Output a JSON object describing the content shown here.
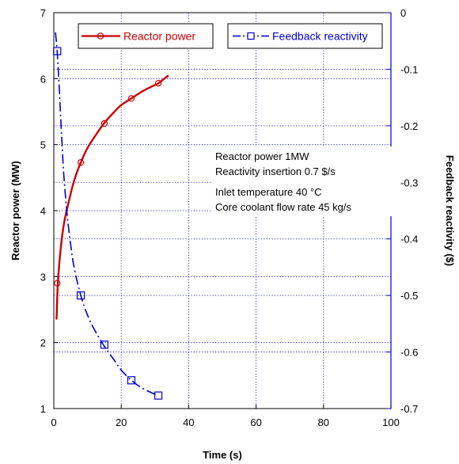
{
  "chart_data": {
    "type": "line",
    "x_axis": {
      "label": "Time (s)",
      "range": [
        0,
        100
      ],
      "ticks": [
        0,
        20,
        40,
        60,
        80,
        100
      ],
      "tick_labels": [
        "0",
        "20",
        "40",
        "60",
        "80",
        "100"
      ]
    },
    "y_left_axis": {
      "label": "Reactor power (MW)",
      "range": [
        1,
        7
      ],
      "ticks": [
        1,
        2,
        3,
        4,
        5,
        6,
        7
      ],
      "tick_labels": [
        "1",
        "2",
        "3",
        "4",
        "5",
        "6",
        "7"
      ]
    },
    "y_right_axis": {
      "label": "Feedback reactivity ($)",
      "range": [
        -0.7,
        0
      ],
      "ticks": [
        0,
        -0.1,
        -0.2,
        -0.3,
        -0.4,
        -0.5,
        -0.6,
        -0.7
      ],
      "tick_labels": [
        "0",
        "-0.1",
        "-0.2",
        "-0.3",
        "-0.4",
        "-0.5",
        "-0.6",
        "-0.7"
      ]
    },
    "grid": true,
    "legend_placement": "top",
    "series": [
      {
        "name": "Reactor power",
        "axis": "left",
        "color": "#cc0000",
        "line_style": "solid",
        "marker": "circle",
        "curve": [
          [
            0.8,
            2.35
          ],
          [
            1.2,
            2.9
          ],
          [
            2,
            3.4
          ],
          [
            3,
            3.8
          ],
          [
            4.5,
            4.15
          ],
          [
            6,
            4.45
          ],
          [
            8,
            4.73
          ],
          [
            10,
            4.95
          ],
          [
            12.5,
            5.15
          ],
          [
            15,
            5.33
          ],
          [
            18,
            5.5
          ],
          [
            20,
            5.6
          ],
          [
            23,
            5.7
          ],
          [
            26,
            5.8
          ],
          [
            29,
            5.88
          ],
          [
            31,
            5.93
          ],
          [
            34,
            6.05
          ]
        ],
        "markers": [
          [
            1,
            2.9
          ],
          [
            8,
            4.73
          ],
          [
            15,
            5.32
          ],
          [
            23,
            5.7
          ],
          [
            31,
            5.93
          ]
        ]
      },
      {
        "name": "Feedback reactivity",
        "axis": "right",
        "color": "#0000cc",
        "line_style": "dashdot",
        "marker": "square",
        "curve": [
          [
            0.5,
            -0.035
          ],
          [
            1,
            -0.07
          ],
          [
            1.5,
            -0.12
          ],
          [
            2,
            -0.18
          ],
          [
            2.5,
            -0.24
          ],
          [
            3,
            -0.29
          ],
          [
            4,
            -0.36
          ],
          [
            5,
            -0.41
          ],
          [
            6,
            -0.45
          ],
          [
            8,
            -0.5
          ],
          [
            10,
            -0.535
          ],
          [
            12,
            -0.56
          ],
          [
            15,
            -0.59
          ],
          [
            18,
            -0.615
          ],
          [
            20,
            -0.632
          ],
          [
            23,
            -0.65
          ],
          [
            26,
            -0.663
          ],
          [
            29,
            -0.672
          ],
          [
            31,
            -0.677
          ]
        ],
        "markers": [
          [
            1,
            -0.068
          ],
          [
            8,
            -0.5
          ],
          [
            15,
            -0.587
          ],
          [
            23,
            -0.65
          ],
          [
            31,
            -0.677
          ]
        ]
      }
    ],
    "annotations": [
      "Reactor power 1MW",
      "Reactivity insertion 0.7 $/s",
      "Inlet temperature 40 °C",
      "Core coolant flow rate 45 kg/s"
    ]
  }
}
